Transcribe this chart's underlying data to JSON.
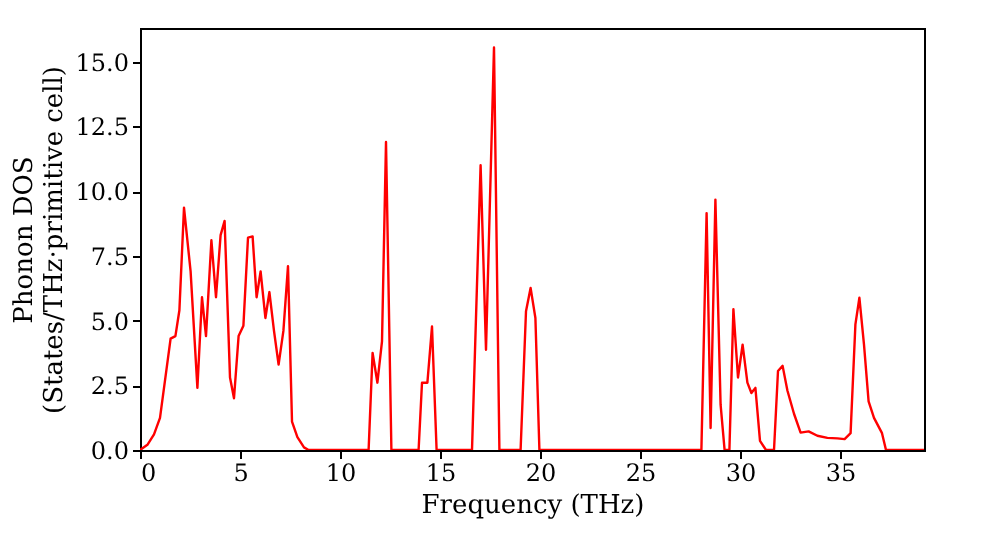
{
  "chart_data": {
    "type": "line",
    "xlabel": "Frequency (THz)",
    "ylabel": "Phonon DOS\n(States/THz·primitive cell)",
    "xlim": [
      0,
      39.2
    ],
    "xticks": [
      0,
      5,
      10,
      15,
      20,
      25,
      30,
      35
    ],
    "ylim": [
      0,
      16.3
    ],
    "yticks": [
      {
        "value": 0,
        "label": "0.0"
      },
      {
        "value": 2.5,
        "label": "2.5"
      },
      {
        "value": 5,
        "label": "5.0"
      },
      {
        "value": 7.5,
        "label": "7.5"
      },
      {
        "value": 10,
        "label": "10.0"
      },
      {
        "value": 12.5,
        "label": "12.5"
      },
      {
        "value": 15,
        "label": "15.0"
      }
    ],
    "grid": false,
    "marker": "none",
    "line_style": "solid",
    "series": [
      {
        "color": "#ff0000",
        "x": [
          0,
          0.37,
          0.7,
          1.0,
          1.53,
          1.77,
          1.97,
          2.2,
          2.53,
          2.87,
          3.1,
          3.3,
          3.57,
          3.8,
          4.03,
          4.23,
          4.5,
          4.7,
          4.93,
          5.17,
          5.4,
          5.63,
          5.83,
          6.03,
          6.27,
          6.47,
          6.7,
          6.93,
          7.17,
          7.4,
          7.6,
          7.87,
          8.2,
          8.43,
          11.43,
          11.63,
          11.87,
          12.1,
          12.3,
          12.57,
          13.93,
          14.1,
          14.37,
          14.6,
          14.83,
          16.6,
          17.03,
          17.3,
          17.7,
          17.97,
          19.03,
          19.3,
          19.53,
          19.77,
          19.97,
          28.07,
          28.33,
          28.53,
          28.77,
          29.03,
          29.23,
          29.47,
          29.67,
          29.9,
          30.13,
          30.37,
          30.57,
          30.77,
          31.0,
          31.3,
          31.7,
          31.9,
          32.13,
          32.37,
          32.7,
          33.03,
          33.43,
          33.87,
          34.37,
          34.87,
          35.23,
          35.53,
          35.77,
          35.97,
          36.2,
          36.43,
          36.7,
          37.1,
          37.3,
          39.2
        ],
        "values": [
          0,
          0.2,
          0.6,
          1.24,
          4.3,
          4.4,
          5.4,
          9.36,
          6.9,
          2.4,
          5.9,
          4.4,
          8.1,
          5.9,
          8.3,
          8.85,
          2.8,
          2.0,
          4.4,
          4.8,
          8.2,
          8.25,
          5.9,
          6.9,
          5.1,
          6.1,
          4.6,
          3.3,
          4.6,
          7.1,
          1.1,
          0.5,
          0.1,
          0,
          0,
          3.75,
          2.6,
          4.2,
          11.9,
          0,
          0,
          2.6,
          2.6,
          4.77,
          0,
          0,
          11.0,
          3.87,
          15.55,
          0,
          0,
          5.36,
          6.26,
          5.1,
          0,
          0,
          9.15,
          0.85,
          9.67,
          1.75,
          0,
          0,
          5.44,
          2.8,
          4.07,
          2.6,
          2.2,
          2.4,
          0.35,
          0,
          0,
          3.05,
          3.25,
          2.3,
          1.4,
          0.67,
          0.72,
          0.55,
          0.47,
          0.45,
          0.42,
          0.65,
          4.85,
          5.88,
          4.07,
          1.88,
          1.24,
          0.65,
          0,
          0
        ]
      }
    ]
  }
}
